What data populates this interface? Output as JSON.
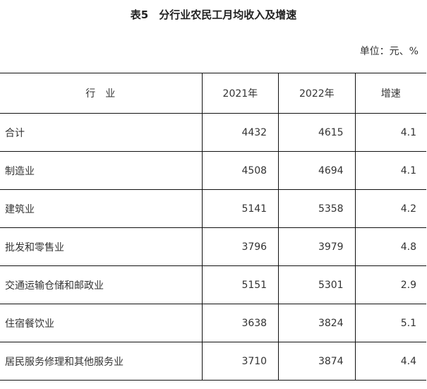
{
  "title": "表5　分行业农民工月均收入及增速",
  "unit": "单位：元、%",
  "table": {
    "headers": [
      "行　业",
      "2021年",
      "2022年",
      "增速"
    ],
    "rows": [
      [
        "合计",
        "4432",
        "4615",
        "4.1"
      ],
      [
        "制造业",
        "4508",
        "4694",
        "4.1"
      ],
      [
        "建筑业",
        "5141",
        "5358",
        "4.2"
      ],
      [
        "批发和零售业",
        "3796",
        "3979",
        "4.8"
      ],
      [
        "交通运输仓储和邮政业",
        "5151",
        "5301",
        "2.9"
      ],
      [
        "住宿餐饮业",
        "3638",
        "3824",
        "5.1"
      ],
      [
        "居民服务修理和其他服务业",
        "3710",
        "3874",
        "4.4"
      ]
    ]
  }
}
